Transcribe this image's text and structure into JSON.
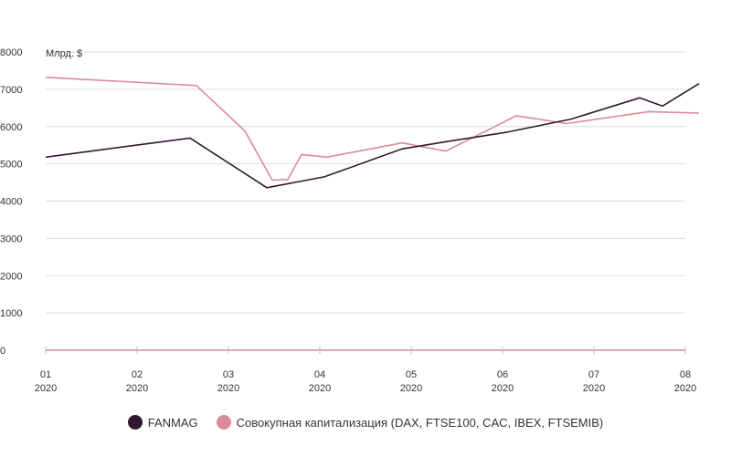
{
  "chart_data": {
    "type": "line",
    "ylabel": "Млрд. $",
    "yticks": [
      "0",
      "1000",
      "2000",
      "3000",
      "4000",
      "5000",
      "6000",
      "7000",
      "8000"
    ],
    "ylim": [
      0,
      8000
    ],
    "x_ticks": [
      {
        "month": "01",
        "year": "2020",
        "pos": 1
      },
      {
        "month": "02",
        "year": "2020",
        "pos": 2
      },
      {
        "month": "03",
        "year": "2020",
        "pos": 3
      },
      {
        "month": "04",
        "year": "2020",
        "pos": 4
      },
      {
        "month": "05",
        "year": "2020",
        "pos": 5
      },
      {
        "month": "06",
        "year": "2020",
        "pos": 6
      },
      {
        "month": "07",
        "year": "2020",
        "pos": 7
      },
      {
        "month": "08",
        "year": "2020",
        "pos": 8
      }
    ],
    "xlim": [
      1,
      8.05
    ],
    "series": [
      {
        "name": "FANMAG",
        "color": "#2e1a2e",
        "points": [
          [
            1.0,
            5180
          ],
          [
            2.58,
            5690
          ],
          [
            3.42,
            4360
          ],
          [
            4.05,
            4650
          ],
          [
            4.9,
            5400
          ],
          [
            5.4,
            5600
          ],
          [
            6.05,
            5850
          ],
          [
            6.75,
            6200
          ],
          [
            7.5,
            6770
          ],
          [
            7.75,
            6550
          ],
          [
            8.15,
            7150
          ]
        ]
      },
      {
        "name": "Совокупная капитализация (DAX, FTSE100, CAC, IBEX, FTSEMIB)",
        "color": "#d98b98",
        "points": [
          [
            1.0,
            7320
          ],
          [
            2.65,
            7100
          ],
          [
            3.18,
            5880
          ],
          [
            3.48,
            4560
          ],
          [
            3.65,
            4580
          ],
          [
            3.8,
            5250
          ],
          [
            4.08,
            5180
          ],
          [
            4.9,
            5560
          ],
          [
            5.38,
            5340
          ],
          [
            6.15,
            6290
          ],
          [
            6.7,
            6080
          ],
          [
            7.6,
            6400
          ],
          [
            8.15,
            6360
          ]
        ]
      }
    ]
  }
}
